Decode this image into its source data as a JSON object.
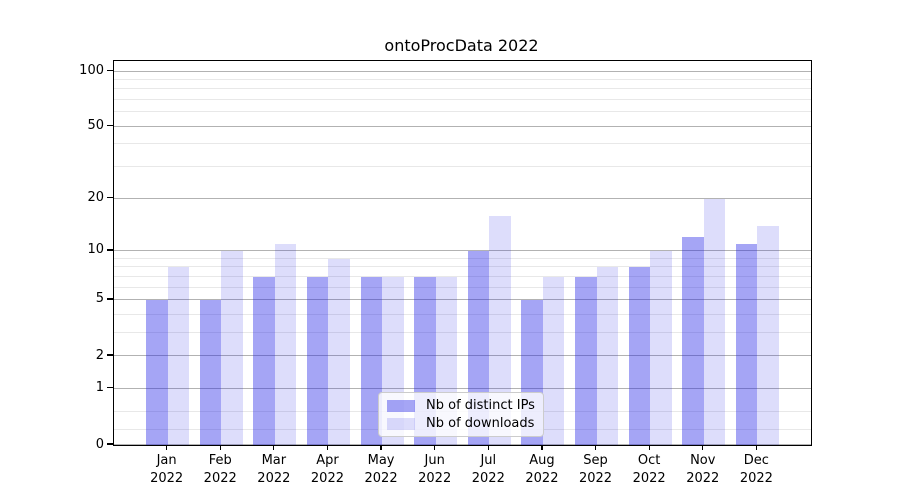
{
  "title": "ontoProcData 2022",
  "chart_data": {
    "type": "bar",
    "title": "ontoProcData 2022",
    "xlabel": "",
    "ylabel": "",
    "scale": "log1p",
    "grid": true,
    "legend_position": "lower center",
    "year": "2022",
    "months": [
      "Jan",
      "Feb",
      "Mar",
      "Apr",
      "May",
      "Jun",
      "Jul",
      "Aug",
      "Sep",
      "Oct",
      "Nov",
      "Dec"
    ],
    "categories": [
      "Jan 2022",
      "Feb 2022",
      "Mar 2022",
      "Apr 2022",
      "May 2022",
      "Jun 2022",
      "Jul 2022",
      "Aug 2022",
      "Sep 2022",
      "Oct 2022",
      "Nov 2022",
      "Dec 2022"
    ],
    "series": [
      {
        "name": "Nb of distinct IPs",
        "color": "rgba(30,30,230,0.4)",
        "values": [
          5,
          5,
          7,
          7,
          7,
          7,
          10,
          5,
          7,
          8,
          12,
          11
        ]
      },
      {
        "name": "Nb of downloads",
        "color": "rgba(30,30,230,0.15)",
        "values": [
          8,
          10,
          11,
          9,
          7,
          7,
          16,
          7,
          8,
          10,
          20,
          14
        ]
      }
    ],
    "yticks_major": [
      0,
      1,
      2,
      5,
      10,
      20,
      50,
      100
    ],
    "yticks_minor": [
      0.2,
      0.5,
      3,
      4,
      6,
      7,
      8,
      9,
      30,
      40,
      60,
      70,
      80,
      90
    ],
    "ylim": [
      0,
      113
    ]
  }
}
